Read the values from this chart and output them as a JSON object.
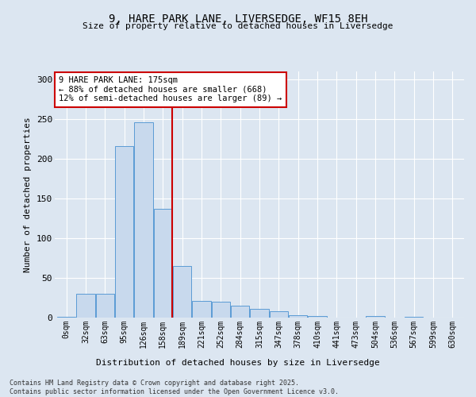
{
  "title_line1": "9, HARE PARK LANE, LIVERSEDGE, WF15 8EH",
  "title_line2": "Size of property relative to detached houses in Liversedge",
  "xlabel": "Distribution of detached houses by size in Liversedge",
  "ylabel": "Number of detached properties",
  "bar_labels": [
    "0sqm",
    "32sqm",
    "63sqm",
    "95sqm",
    "126sqm",
    "158sqm",
    "189sqm",
    "221sqm",
    "252sqm",
    "284sqm",
    "315sqm",
    "347sqm",
    "378sqm",
    "410sqm",
    "441sqm",
    "473sqm",
    "504sqm",
    "536sqm",
    "567sqm",
    "599sqm",
    "630sqm"
  ],
  "bar_values": [
    1,
    30,
    30,
    216,
    246,
    137,
    65,
    21,
    20,
    15,
    11,
    8,
    3,
    2,
    0,
    0,
    2,
    0,
    1,
    0,
    0
  ],
  "bar_color": "#c8d9ed",
  "bar_edge_color": "#5b9bd5",
  "vline_x": 5.5,
  "vline_color": "#cc0000",
  "annotation_text": "9 HARE PARK LANE: 175sqm\n← 88% of detached houses are smaller (668)\n12% of semi-detached houses are larger (89) →",
  "annotation_box_color": "#ffffff",
  "annotation_box_edge": "#cc0000",
  "ylim": [
    0,
    310
  ],
  "yticks": [
    0,
    50,
    100,
    150,
    200,
    250,
    300
  ],
  "bg_color": "#dce6f1",
  "plot_bg_color": "#dce6f1",
  "footer_line1": "Contains HM Land Registry data © Crown copyright and database right 2025.",
  "footer_line2": "Contains public sector information licensed under the Open Government Licence v3.0."
}
